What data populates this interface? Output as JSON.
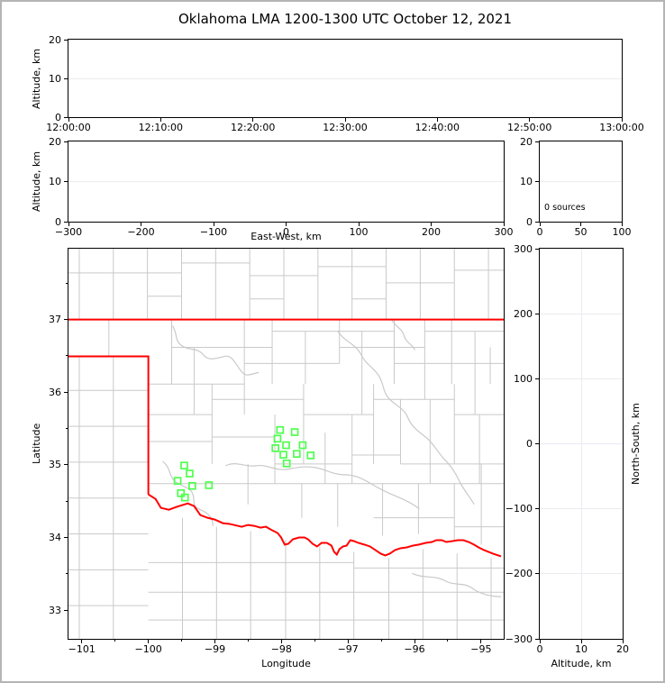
{
  "title": "Oklahoma LMA 1200-1300 UTC October 12, 2021",
  "colors": {
    "state_border": "#ff0000",
    "county_lines": "#c9c9c9",
    "station_marker": "#4dff4d",
    "gridline": "#ebebf0"
  },
  "chart_data": [
    {
      "id": "time_height",
      "type": "scatter",
      "ylabel": "Altitude, km",
      "xlim": [
        "12:00:00",
        "13:00:00"
      ],
      "ylim": [
        0,
        20
      ],
      "xtick_labels": [
        "12:00:00",
        "12:10:00",
        "12:20:00",
        "12:30:00",
        "12:40:00",
        "12:50:00",
        "13:00:00"
      ],
      "ytick_values": [
        0,
        10,
        20
      ],
      "ytick_labels": [
        "0",
        "10",
        "20"
      ],
      "grid_x": false,
      "grid_y": true,
      "points": []
    },
    {
      "id": "ew_height",
      "type": "scatter",
      "xlabel": "East-West, km",
      "ylabel": "Altitude, km",
      "xlim": [
        -300,
        300
      ],
      "ylim": [
        0,
        20
      ],
      "xtick_values": [
        -300,
        -200,
        -100,
        0,
        100,
        200,
        300
      ],
      "xtick_labels": [
        "−300",
        "−200",
        "−100",
        "0",
        "100",
        "200",
        "300"
      ],
      "ytick_values": [
        0,
        10,
        20
      ],
      "ytick_labels": [
        "0",
        "10",
        "20"
      ],
      "grid_x": false,
      "grid_y": true,
      "points": []
    },
    {
      "id": "altitude_histogram",
      "type": "line",
      "annotation": "0 sources",
      "xlim": [
        0,
        100
      ],
      "ylim": [
        0,
        20
      ],
      "xtick_values": [
        0,
        50,
        100
      ],
      "xtick_labels": [
        "0",
        "50",
        "100"
      ],
      "ytick_values": [
        0,
        10,
        20
      ],
      "ytick_labels": [
        "0",
        "10",
        "20"
      ],
      "grid_x": false,
      "grid_y": true,
      "points": []
    },
    {
      "id": "plan_map",
      "type": "scatter",
      "xlabel": "Longitude",
      "ylabel": "Latitude",
      "xlim": [
        -101.2,
        -94.66
      ],
      "ylim": [
        32.605,
        37.975
      ],
      "xtick_values": [
        -101,
        -100,
        -99,
        -98,
        -97,
        -96,
        -95
      ],
      "xtick_labels": [
        "−101",
        "−100",
        "−99",
        "−98",
        "−97",
        "−96",
        "−95"
      ],
      "ytick_values": [
        33,
        34,
        35,
        36,
        37
      ],
      "ytick_labels": [
        "33",
        "34",
        "35",
        "36",
        "37"
      ],
      "xminor_values": [
        -100.5,
        -99.5,
        -98.5,
        -97.5,
        -96.5,
        -95.5
      ],
      "yminor_values": [
        33.5,
        34.5,
        35.5,
        36.5,
        37.5
      ],
      "grid_x": false,
      "grid_y": false,
      "marker": "open-square",
      "marker_color": "#4dff4d",
      "station_count": 17,
      "stations": [
        {
          "lon": -98.02,
          "lat": 35.48
        },
        {
          "lon": -97.8,
          "lat": 35.45
        },
        {
          "lon": -98.06,
          "lat": 35.36
        },
        {
          "lon": -97.93,
          "lat": 35.27
        },
        {
          "lon": -98.09,
          "lat": 35.23
        },
        {
          "lon": -97.68,
          "lat": 35.27
        },
        {
          "lon": -97.77,
          "lat": 35.15
        },
        {
          "lon": -97.97,
          "lat": 35.14
        },
        {
          "lon": -97.56,
          "lat": 35.13
        },
        {
          "lon": -97.92,
          "lat": 35.02
        },
        {
          "lon": -99.46,
          "lat": 34.99
        },
        {
          "lon": -99.38,
          "lat": 34.88
        },
        {
          "lon": -99.56,
          "lat": 34.78
        },
        {
          "lon": -99.34,
          "lat": 34.71
        },
        {
          "lon": -99.09,
          "lat": 34.72
        },
        {
          "lon": -99.51,
          "lat": 34.61
        },
        {
          "lon": -99.45,
          "lat": 34.55
        }
      ]
    },
    {
      "id": "ns_height",
      "type": "scatter",
      "xlabel": "Altitude, km",
      "ylabel": "North-South, km",
      "xlim": [
        0,
        20
      ],
      "ylim": [
        -300,
        300
      ],
      "xtick_values": [
        0,
        10,
        20
      ],
      "xtick_labels": [
        "0",
        "10",
        "20"
      ],
      "ytick_values": [
        300,
        200,
        100,
        0,
        -100,
        -200,
        -300
      ],
      "ytick_labels": [
        "300",
        "200",
        "100",
        "0",
        "−100",
        "−200",
        "−300"
      ],
      "grid_x": true,
      "grid_y": true,
      "points": []
    }
  ]
}
